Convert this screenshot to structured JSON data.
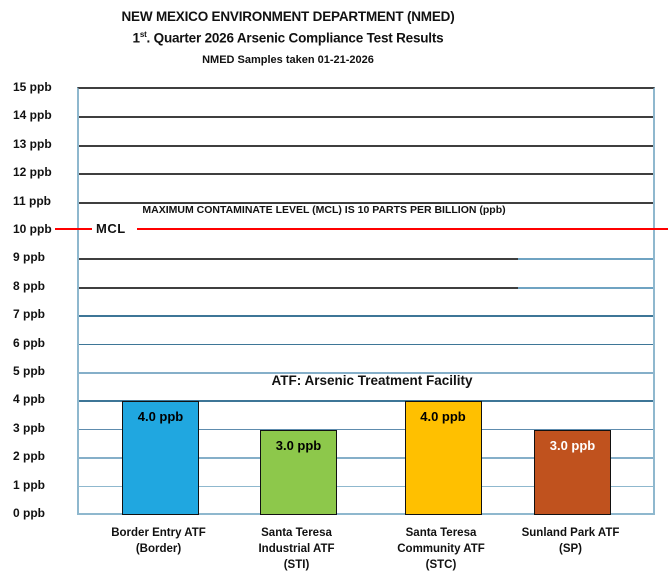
{
  "header": {
    "title": "NEW MEXICO ENVIRONMENT DEPARTMENT (NMED)",
    "subtitle_prefix": "1",
    "subtitle_sup": "st",
    "subtitle_rest": ". Quarter 2026 Arsenic Compliance Test Results",
    "sample_note": "NMED Samples taken 01-21-2026"
  },
  "chart_data": {
    "type": "bar",
    "title": "NEW MEXICO ENVIRONMENT DEPARTMENT (NMED) — 1st. Quarter 2026 Arsenic Compliance Test Results",
    "subtitle": "NMED Samples taken 01-21-2026",
    "categories": [
      "Border Entry ATF\n(Border)",
      "Santa Teresa\nIndustrial ATF\n(STI)",
      "Santa Teresa\nCommunity ATF\n(STC)",
      "Sunland Park ATF\n(SP)"
    ],
    "values": [
      4.0,
      3.0,
      4.0,
      3.0
    ],
    "value_labels": [
      "4.0 ppb",
      "3.0 ppb",
      "4.0 ppb",
      "3.0 ppb"
    ],
    "bar_colors": [
      "#20a7e0",
      "#8dc84b",
      "#ffc000",
      "#c0521e"
    ],
    "value_label_colors": [
      "#000000",
      "#000000",
      "#000000",
      "#ffffff"
    ],
    "ylim": [
      0,
      15
    ],
    "ytick_step": 1,
    "ytick_suffix": " ppb",
    "xlabel": "",
    "ylabel": "",
    "grid": true,
    "legend": false,
    "mcl_line": {
      "value": 10,
      "label": "MCL",
      "color": "#ff0000",
      "annotation": "MAXIMUM CONTAMINATE LEVEL (MCL) IS 10 PARTS PER BILLION (ppb)"
    },
    "annotation": "ATF: Arsenic Treatment Facility"
  }
}
